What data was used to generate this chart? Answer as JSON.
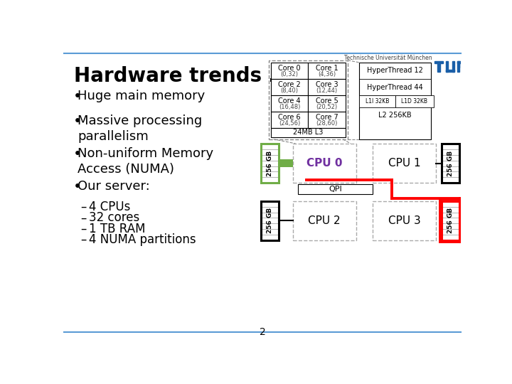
{
  "title": "Hardware trends …",
  "bg_color": "#ffffff",
  "header_line_color": "#5b9bd5",
  "footer_line_color": "#5b9bd5",
  "title_color": "#000000",
  "title_fontsize": 20,
  "bullet_fontsize": 13,
  "bullet_items": [
    "Huge main memory",
    "Massive processing\nparallelism",
    "Non-uniform Memory\nAccess (NUMA)",
    "Our server:"
  ],
  "sub_items": [
    "4 CPUs",
    "32 cores",
    "1 TB RAM",
    "4 NUMA partitions"
  ],
  "tum_text": "Technische Universität München",
  "tum_text_color": "#404040",
  "tum_logo_color": "#1a5fa8",
  "page_number": "2",
  "diagram": {
    "cpu0_label_color": "#7030a0",
    "qpi_line_color": "#ff0000",
    "memory_highlight_green": "#70ad47",
    "memory_highlight_red": "#ff0000",
    "dashed_color": "#808080",
    "cores": [
      [
        "Core 0",
        "(0,32)",
        "Core 1",
        "(4,36)"
      ],
      [
        "Core 2",
        "(8,40)",
        "Core 3",
        "(12,44)"
      ],
      [
        "Core 4",
        "(16,48)",
        "Core 5",
        "(20,52)"
      ],
      [
        "Core 6",
        "(24,56)",
        "Core 7",
        "(28,60)"
      ]
    ],
    "l3_label": "24MB L3",
    "hyperthread_labels": [
      "HyperThread 12",
      "HyperThread 44"
    ],
    "cache_labels": [
      "L1I 32KB",
      "L1D 32KB",
      "L2 256KB"
    ],
    "cpu_labels": [
      "CPU 0",
      "CPU 1",
      "CPU 2",
      "CPU 3"
    ],
    "memory_label": "256 GB",
    "qpi_label": "QPI"
  }
}
